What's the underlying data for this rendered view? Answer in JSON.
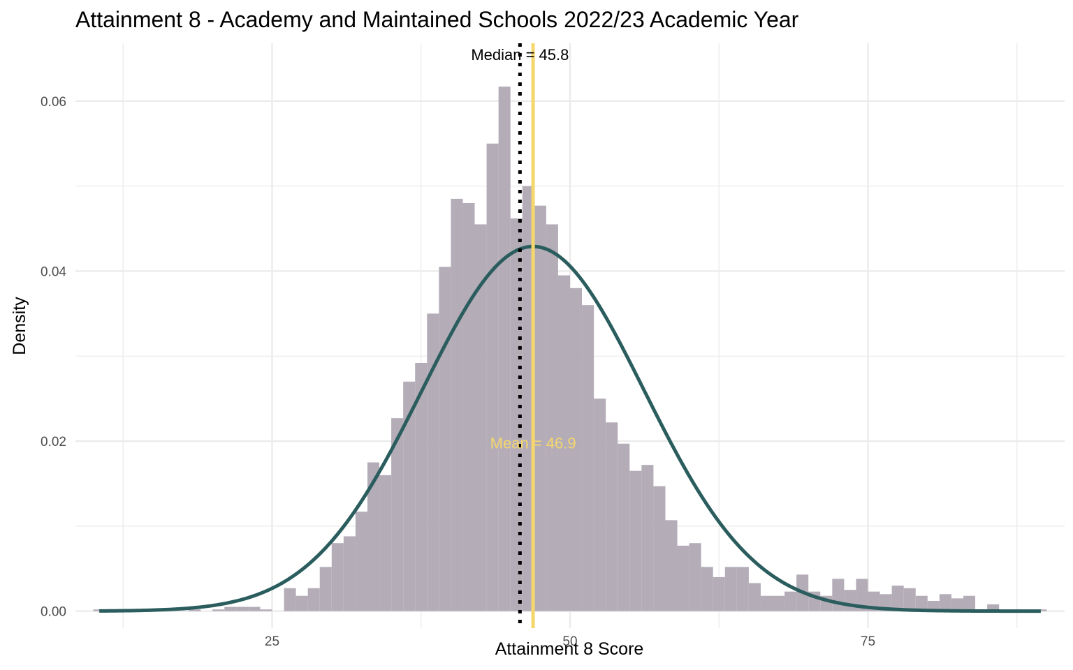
{
  "chart_data": {
    "type": "bar",
    "title": "Attainment 8 - Academy and Maintained Schools 2022/23 Academic Year",
    "xlabel": "Attainment 8 Score",
    "ylabel": "Density",
    "xlim": [
      8.5,
      91.5
    ],
    "ylim": [
      -0.002,
      0.0668
    ],
    "x_ticks": [
      25,
      50,
      75
    ],
    "x_tick_labels": [
      "25",
      "50",
      "75"
    ],
    "y_ticks": [
      0,
      0.02,
      0.04,
      0.06
    ],
    "y_tick_labels": [
      "0.00",
      "0.02",
      "0.04",
      "0.06"
    ],
    "grid": true,
    "bin_width": 1,
    "bins": [
      {
        "x": 10.5,
        "y": 0.0002
      },
      {
        "x": 18.5,
        "y": 0.0002
      },
      {
        "x": 20.5,
        "y": 0.0002
      },
      {
        "x": 21.5,
        "y": 0.0005
      },
      {
        "x": 22.5,
        "y": 0.0005
      },
      {
        "x": 23.5,
        "y": 0.0005
      },
      {
        "x": 24.5,
        "y": 0.0002
      },
      {
        "x": 26.5,
        "y": 0.0027
      },
      {
        "x": 27.5,
        "y": 0.0018
      },
      {
        "x": 28.5,
        "y": 0.0027
      },
      {
        "x": 29.5,
        "y": 0.0052
      },
      {
        "x": 30.5,
        "y": 0.008
      },
      {
        "x": 31.5,
        "y": 0.0088
      },
      {
        "x": 32.5,
        "y": 0.0117
      },
      {
        "x": 33.5,
        "y": 0.0175
      },
      {
        "x": 34.5,
        "y": 0.016
      },
      {
        "x": 35.5,
        "y": 0.0227
      },
      {
        "x": 36.5,
        "y": 0.027
      },
      {
        "x": 37.5,
        "y": 0.0292
      },
      {
        "x": 38.5,
        "y": 0.035
      },
      {
        "x": 39.5,
        "y": 0.0405
      },
      {
        "x": 40.5,
        "y": 0.0485
      },
      {
        "x": 41.5,
        "y": 0.048
      },
      {
        "x": 42.5,
        "y": 0.0455
      },
      {
        "x": 43.5,
        "y": 0.055
      },
      {
        "x": 44.5,
        "y": 0.0617
      },
      {
        "x": 45.5,
        "y": 0.0462
      },
      {
        "x": 46.5,
        "y": 0.05
      },
      {
        "x": 47.5,
        "y": 0.0477
      },
      {
        "x": 48.5,
        "y": 0.0455
      },
      {
        "x": 49.5,
        "y": 0.0395
      },
      {
        "x": 50.5,
        "y": 0.038
      },
      {
        "x": 51.5,
        "y": 0.036
      },
      {
        "x": 52.5,
        "y": 0.025
      },
      {
        "x": 53.5,
        "y": 0.0222
      },
      {
        "x": 54.5,
        "y": 0.0197
      },
      {
        "x": 55.5,
        "y": 0.0165
      },
      {
        "x": 56.5,
        "y": 0.0172
      },
      {
        "x": 57.5,
        "y": 0.0147
      },
      {
        "x": 58.5,
        "y": 0.0107
      },
      {
        "x": 59.5,
        "y": 0.0077
      },
      {
        "x": 60.5,
        "y": 0.008
      },
      {
        "x": 61.5,
        "y": 0.0052
      },
      {
        "x": 62.5,
        "y": 0.004
      },
      {
        "x": 63.5,
        "y": 0.0052
      },
      {
        "x": 64.5,
        "y": 0.0052
      },
      {
        "x": 65.5,
        "y": 0.0033
      },
      {
        "x": 66.5,
        "y": 0.0018
      },
      {
        "x": 67.5,
        "y": 0.0018
      },
      {
        "x": 68.5,
        "y": 0.0023
      },
      {
        "x": 69.5,
        "y": 0.0043
      },
      {
        "x": 70.5,
        "y": 0.0023
      },
      {
        "x": 71.5,
        "y": 0.0018
      },
      {
        "x": 72.5,
        "y": 0.0038
      },
      {
        "x": 73.5,
        "y": 0.0025
      },
      {
        "x": 74.5,
        "y": 0.0038
      },
      {
        "x": 75.5,
        "y": 0.0023
      },
      {
        "x": 76.5,
        "y": 0.002
      },
      {
        "x": 77.5,
        "y": 0.003
      },
      {
        "x": 78.5,
        "y": 0.0027
      },
      {
        "x": 79.5,
        "y": 0.0018
      },
      {
        "x": 80.5,
        "y": 0.0012
      },
      {
        "x": 81.5,
        "y": 0.002
      },
      {
        "x": 82.5,
        "y": 0.0015
      },
      {
        "x": 83.5,
        "y": 0.0018
      },
      {
        "x": 85.5,
        "y": 0.0008
      },
      {
        "x": 87.5,
        "y": 0.0002
      },
      {
        "x": 89.5,
        "y": 0.0002
      }
    ],
    "normal_curve": {
      "mean": 46.9,
      "sd": 9.3,
      "x_range": [
        10.5,
        89.5
      ]
    },
    "median_line": {
      "x": 45.8,
      "label": "Median = 45.8",
      "label_y": 0.0655
    },
    "mean_line": {
      "x": 46.9,
      "label": "Mean = 46.9",
      "label_y": 0.0198
    },
    "colors": {
      "bars": "#b4adb8",
      "curve": "#2b5d5e",
      "mean": "#f5d76e",
      "median": "#000000",
      "grid": "#ebebeb",
      "tick_text": "#4d4d4d"
    }
  }
}
